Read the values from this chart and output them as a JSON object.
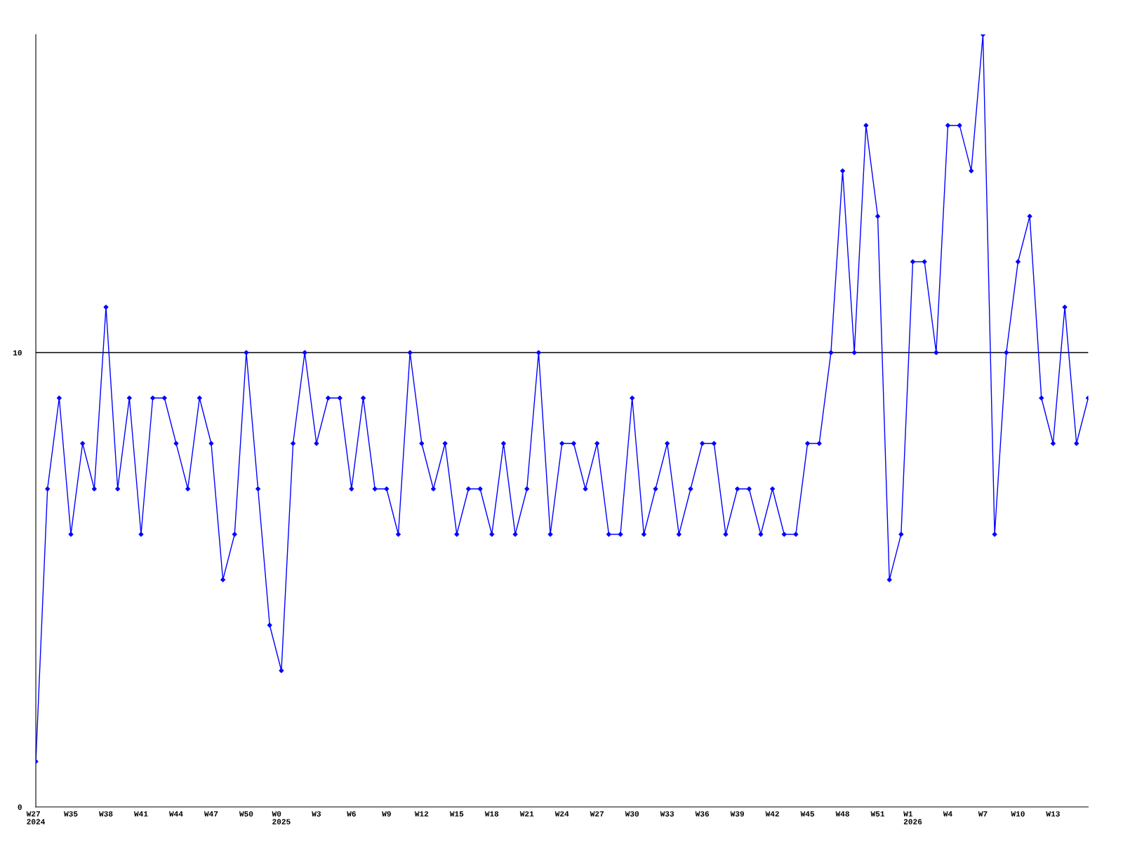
{
  "chart_data": {
    "type": "line",
    "categories": [
      "W27\n2024",
      null,
      null,
      "W35",
      null,
      null,
      "W38",
      null,
      null,
      "W41",
      null,
      null,
      "W44",
      null,
      null,
      "W47",
      null,
      null,
      "W50",
      null,
      null,
      "W0\n2025",
      null,
      null,
      "W3",
      null,
      null,
      "W6",
      null,
      null,
      "W9",
      null,
      null,
      "W12",
      null,
      null,
      "W15",
      null,
      null,
      "W18",
      null,
      null,
      "W21",
      null,
      null,
      "W24",
      null,
      null,
      "W27",
      null,
      null,
      "W30",
      null,
      null,
      "W33",
      null,
      null,
      "W36",
      null,
      null,
      "W39",
      null,
      null,
      "W42",
      null,
      null,
      "W45",
      null,
      null,
      "W48",
      null,
      null,
      "W51",
      null,
      null,
      "W1\n2026",
      null,
      null,
      "W4",
      null,
      null,
      "W7",
      null,
      null,
      "W10",
      null,
      null,
      "W13",
      null,
      null,
      null
    ],
    "series": [
      {
        "color": "#0000ff",
        "values": [
          1,
          7,
          9,
          6,
          8,
          7,
          11,
          7,
          9,
          6,
          9,
          9,
          8,
          7,
          9,
          8,
          5,
          6,
          10,
          7,
          4,
          3,
          8,
          10,
          8,
          9,
          9,
          7,
          9,
          7,
          7,
          6,
          10,
          8,
          7,
          8,
          6,
          7,
          7,
          6,
          8,
          6,
          7,
          10,
          6,
          8,
          8,
          7,
          8,
          6,
          6,
          9,
          6,
          7,
          8,
          6,
          7,
          8,
          8,
          6,
          7,
          7,
          6,
          7,
          6,
          6,
          8,
          8,
          10,
          14,
          10,
          15,
          13,
          5,
          6,
          12,
          12,
          10,
          15,
          15,
          14,
          17,
          6,
          10,
          12,
          13,
          9,
          8,
          11,
          8,
          9
        ]
      }
    ],
    "ylim": [
      0,
      17
    ],
    "yticks": [
      0,
      10
    ],
    "ref_lines": [
      {
        "axis": "y",
        "value": 10,
        "color": "#000000"
      }
    ],
    "marker": "diamond",
    "line_style": "solid",
    "grid": false,
    "legend": false
  }
}
